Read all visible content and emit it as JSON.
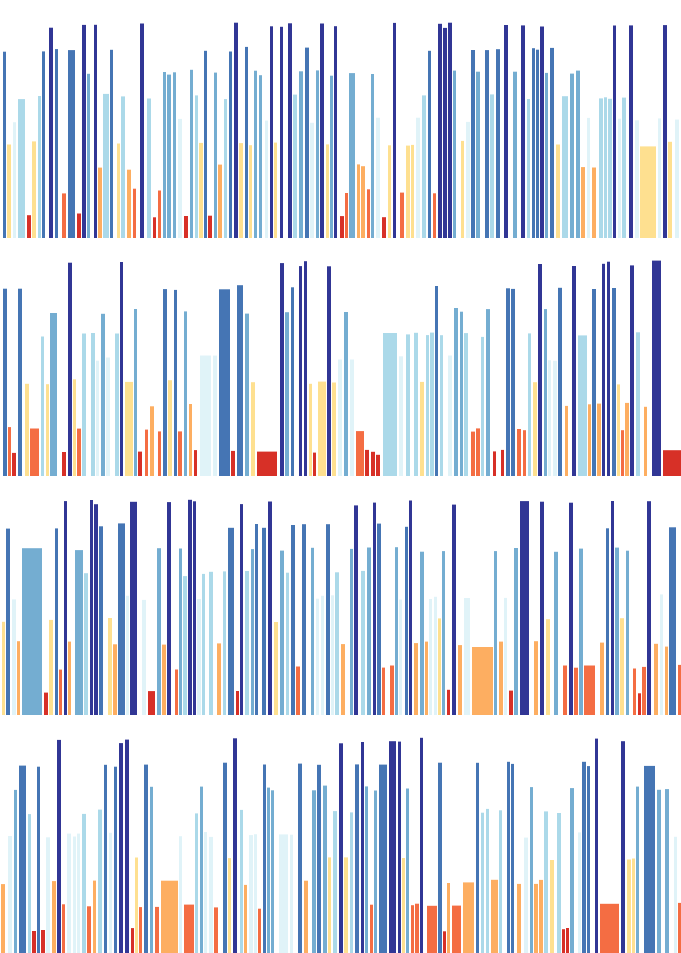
{
  "artwork": {
    "kind": "abstract generative barcode pattern",
    "rows": 4,
    "palette": [
      "#d73027",
      "#f46d43",
      "#fdae61",
      "#fee090",
      "#e0f3f8",
      "#abd9e9",
      "#74add1",
      "#4575b4",
      "#313695"
    ],
    "level_to_color": "level 1 = red (short) ... level 9 = dark blue (tall)",
    "levels_in_pattern": 9,
    "seeds": [
      11,
      23,
      37,
      53
    ]
  }
}
